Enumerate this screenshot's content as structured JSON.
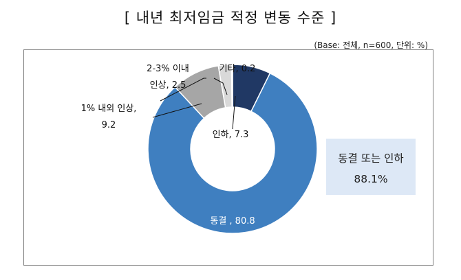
{
  "title": "[ 내년 최저임금 적정 변동 수준 ]",
  "base_note": "(Base: 전체, n=600, 단위: %)",
  "summary": {
    "label": "동결 또는 인하",
    "value": "88.1%"
  },
  "chart_data": {
    "type": "pie",
    "variant": "donut",
    "unit": "%",
    "title": "[ 내년 최저임금 적정 변동 수준 ]",
    "slices": [
      {
        "label": "인하",
        "value": 7.3,
        "color": "#203864",
        "label_lines": [
          "인하, 7.3"
        ]
      },
      {
        "label": "동결",
        "value": 80.8,
        "color": "#3f7fc0",
        "label_lines": [
          "동결 , 80.8"
        ]
      },
      {
        "label": "1% 내외 인상",
        "value": 9.2,
        "color": "#a6a6a6",
        "label_lines": [
          "1% 내외 인상,",
          "9.2"
        ]
      },
      {
        "label": "2-3% 이내 인상",
        "value": 2.5,
        "color": "#d9d9d9",
        "label_lines": [
          "2-3% 이내",
          "인상, 2.5"
        ]
      },
      {
        "label": "기타",
        "value": 0.2,
        "color": "#f2f2f2",
        "label_lines": [
          "기타, 0.2"
        ]
      }
    ]
  }
}
